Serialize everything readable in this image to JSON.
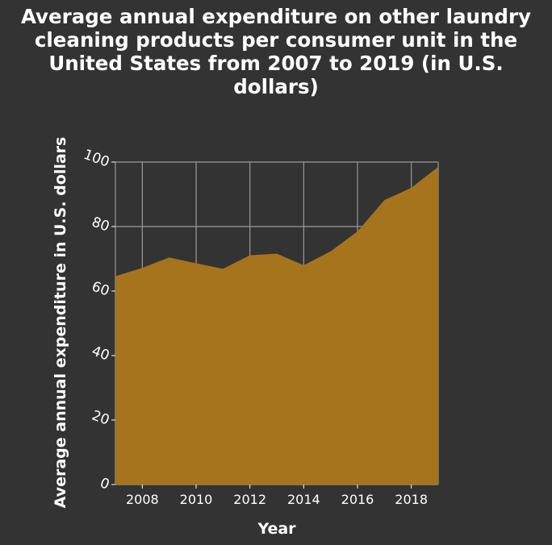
{
  "chart_data": {
    "type": "area",
    "title_lines": [
      "Average annual expenditure on other laundry",
      "cleaning products per consumer unit in the",
      "United States from 2007 to 2019 (in U.S.",
      "dollars)"
    ],
    "xlabel": "Year",
    "ylabel": "Average annual expenditure in U.S. dollars",
    "x": [
      2007,
      2008,
      2009,
      2010,
      2011,
      2012,
      2013,
      2014,
      2015,
      2016,
      2017,
      2018,
      2019
    ],
    "values": [
      64.6,
      67.2,
      70.4,
      68.6,
      66.9,
      71.1,
      71.6,
      68.0,
      72.3,
      78.5,
      88.2,
      92.0,
      98.5
    ],
    "xlim": [
      2007,
      2019
    ],
    "ylim": [
      0,
      100
    ],
    "x_ticks": [
      "2008",
      "2010",
      "2012",
      "2014",
      "2016",
      "2018"
    ],
    "x_tick_values": [
      2008,
      2010,
      2012,
      2014,
      2016,
      2018
    ],
    "y_ticks": [
      "0",
      "20",
      "40",
      "60",
      "80",
      "100"
    ],
    "y_tick_values": [
      0,
      20,
      40,
      60,
      80,
      100
    ],
    "grid": true,
    "colors": {
      "background": "#333333",
      "fill": "#a6741c",
      "grid": "#9a9a9a",
      "text": "#ffffff"
    }
  }
}
